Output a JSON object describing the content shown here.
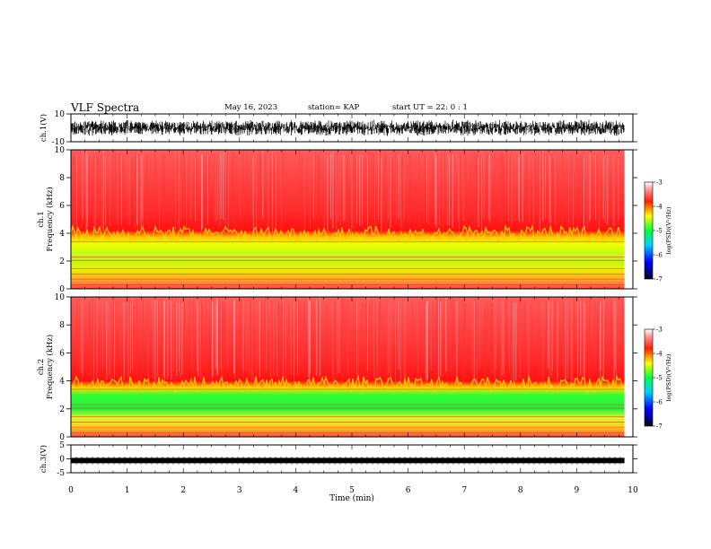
{
  "header": {
    "title": "VLF Spectra",
    "date": "May 16, 2023",
    "station": "station= KAP",
    "start": "start  UT =   22: 0  : 1"
  },
  "chart_data": [
    {
      "type": "line",
      "panel": "ch1-waveform",
      "ylabel": "ch.1(V)",
      "ylim": [
        -10,
        10
      ],
      "ytick_labels": [
        "10",
        "-10"
      ],
      "x_units": "min",
      "xlim": [
        0,
        9.85
      ],
      "description_series": [
        {
          "values": "noise band approx -7 to +7 V filling panel"
        }
      ]
    },
    {
      "type": "heatmap",
      "panel": "ch1-spectrogram",
      "ylabel": "ch.1  Frequency (kHz)",
      "ylim": [
        0,
        10
      ],
      "ytick_labels": [
        "0",
        "2",
        "4",
        "6",
        "8",
        "10"
      ],
      "xlim": [
        0,
        9.85
      ],
      "colorbar": {
        "label": "log(PSD)(V²/Hz)",
        "ticks": [
          "-3",
          "-4",
          "-5",
          "-6",
          "-7"
        ],
        "range": [
          -7,
          -3
        ]
      },
      "bands_khz": [
        {
          "from": 0,
          "to": 3.7,
          "level": -4.8
        },
        {
          "from": 3.7,
          "to": 10,
          "level": -3.5
        }
      ]
    },
    {
      "type": "heatmap",
      "panel": "ch2-spectrogram",
      "ylabel": "ch.2  Frequency (kHz)",
      "ylim": [
        0,
        10
      ],
      "ytick_labels": [
        "0",
        "2",
        "4",
        "6",
        "8",
        "10"
      ],
      "xlim": [
        0,
        9.85
      ],
      "colorbar": {
        "label": "log(PSD)(V²/Hz)",
        "ticks": [
          "-3",
          "-4",
          "-5",
          "-6",
          "-7"
        ],
        "range": [
          -7,
          -3
        ]
      },
      "bands_khz": [
        {
          "from": 0,
          "to": 3.5,
          "level": -5.2
        },
        {
          "from": 3.5,
          "to": 10,
          "level": -3.5
        }
      ]
    },
    {
      "type": "line",
      "panel": "ch3-waveform",
      "ylabel": "ch.3(V)",
      "ylim": [
        -5,
        5
      ],
      "ytick_labels": [
        "5",
        "0",
        "-5"
      ],
      "xlim": [
        0,
        9.85
      ],
      "series": [
        {
          "values": [
            -0.6,
            -0.6
          ]
        }
      ]
    }
  ],
  "xaxis": {
    "label": "Time (min)",
    "range": [
      0,
      10
    ],
    "tick_labels": [
      "0",
      "1",
      "2",
      "3",
      "4",
      "5",
      "6",
      "7",
      "8",
      "9",
      "10"
    ]
  },
  "colors": {
    "red": "#ff2020",
    "yellow": "#ffff00",
    "green": "#22ee22",
    "trace": "#000000"
  }
}
